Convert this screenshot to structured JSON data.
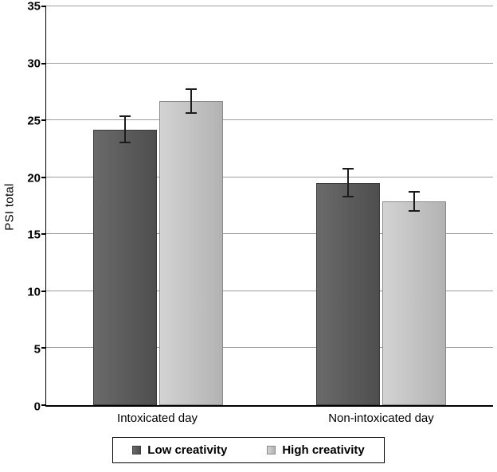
{
  "chart_data": {
    "type": "bar",
    "ylabel": "PSI total",
    "xlabel": "",
    "ylim": [
      0,
      35
    ],
    "ytick_step": 5,
    "grid": true,
    "legend_position": "bottom",
    "categories": [
      "Intoxicated day",
      "Non-intoxicated day"
    ],
    "series": [
      {
        "name": "Low creativity",
        "values": [
          24.2,
          19.5
        ],
        "errors": [
          1.2,
          1.3
        ],
        "color_left": "#6a6a6a",
        "color_right": "#4e4e4e",
        "border": "#3c3c3c"
      },
      {
        "name": "High creativity",
        "values": [
          26.7,
          17.9
        ],
        "errors": [
          1.1,
          0.9
        ],
        "color_left": "#d3d3d3",
        "color_right": "#b3b3b3",
        "border": "#8a8a8a"
      }
    ],
    "colors": {
      "axis": "#000000",
      "gridline": "#9d9d9d",
      "error_bar": "#1c1c1c"
    }
  }
}
